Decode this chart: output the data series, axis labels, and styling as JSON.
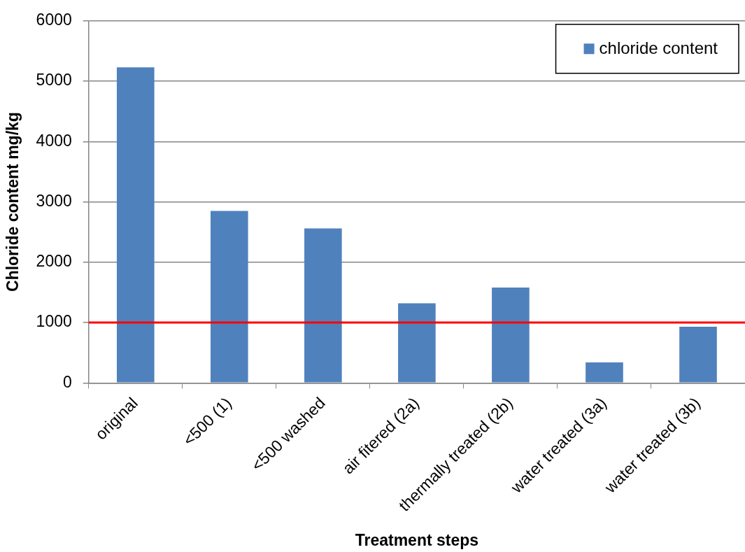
{
  "chart_data": {
    "type": "bar",
    "xlabel": "Treatment steps",
    "ylabel": "Chloride content mg/kg",
    "categories": [
      "original",
      "<500 (1)",
      "<500 washed",
      "air fitered (2a)",
      "thermally treated (2b)",
      "water treated (3a)",
      "water treated (3b)"
    ],
    "series": [
      {
        "name": "chloride content",
        "color": "#4f81bd",
        "values": [
          5230,
          2850,
          2560,
          1320,
          1580,
          340,
          930
        ]
      }
    ],
    "ylim": [
      0,
      6000
    ],
    "yticks": [
      0,
      1000,
      2000,
      3000,
      4000,
      5000,
      6000
    ],
    "grid": "y",
    "legend": "top right",
    "ref_lines": [
      {
        "axis": "y",
        "value": 1000,
        "color": "#ff0000"
      }
    ]
  }
}
